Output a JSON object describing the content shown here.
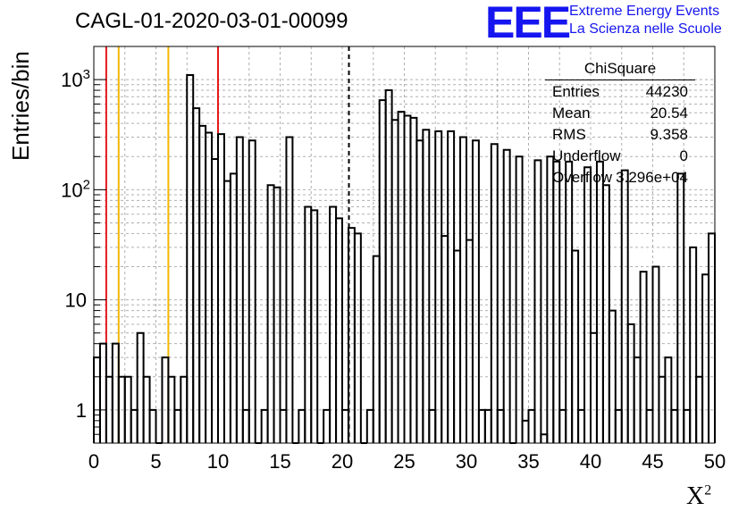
{
  "title": "CAGL-01-2020-03-01-00099",
  "logo": {
    "mark": "EEE",
    "line1": "Extreme Energy Events",
    "line2": "La Scienza nelle Scuole",
    "color": "#1515f0"
  },
  "stats_box": {
    "title": "ChiSquare",
    "rows": [
      {
        "key": "Entries",
        "value": "44230"
      },
      {
        "key": "Mean",
        "value": "20.54"
      },
      {
        "key": "RMS",
        "value": "9.358"
      },
      {
        "key": "Underflow",
        "value": "0"
      },
      {
        "key": "Overflow",
        "value": "3.296e+04"
      }
    ]
  },
  "chart_data": {
    "type": "bar",
    "histogram": true,
    "ylabel": "Entries/bin",
    "xlabel": "X",
    "xlabel_superscript": "2",
    "xlim": [
      0,
      50
    ],
    "ylim": [
      0.5,
      2000
    ],
    "log_y": true,
    "grid": true,
    "bin_width": 0.5,
    "xticks": [
      "0",
      "5",
      "10",
      "15",
      "20",
      "25",
      "30",
      "35",
      "40",
      "45",
      "50"
    ],
    "yticks": [
      {
        "value": 1,
        "label": "1"
      },
      {
        "value": 10,
        "label": "10"
      },
      {
        "value": 100,
        "label": "10",
        "exp": "2"
      },
      {
        "value": 1000,
        "label": "10",
        "exp": "3"
      }
    ],
    "values": [
      3,
      4,
      2,
      4,
      2,
      2,
      1,
      5,
      2,
      1,
      0,
      3,
      2,
      1,
      2,
      1100,
      550,
      380,
      330,
      190,
      320,
      120,
      140,
      300,
      1,
      280,
      0,
      1,
      110,
      105,
      1,
      300,
      0,
      1,
      70,
      65,
      0,
      1,
      70,
      55,
      1,
      45,
      40,
      0,
      1,
      25,
      650,
      800,
      430,
      510,
      470,
      450,
      280,
      350,
      1,
      340,
      38,
      340,
      28,
      300,
      35,
      280,
      1,
      1,
      260,
      1,
      230,
      0,
      200,
      0.8,
      1,
      185,
      0.6,
      200,
      180,
      1,
      180,
      28,
      1,
      160,
      5,
      180,
      110,
      8,
      1,
      150,
      6,
      3,
      18,
      1,
      20,
      2,
      3,
      1,
      140,
      1,
      30,
      2,
      17,
      40
    ],
    "lines": [
      {
        "x": 1,
        "color": "#e41a1c",
        "style": "solid"
      },
      {
        "x": 2,
        "color": "#f2b705",
        "style": "solid"
      },
      {
        "x": 6,
        "color": "#f2b705",
        "style": "solid"
      },
      {
        "x": 10,
        "color": "#e41a1c",
        "style": "solid"
      },
      {
        "x": 20.54,
        "color": "#000000",
        "style": "dashed"
      }
    ]
  }
}
